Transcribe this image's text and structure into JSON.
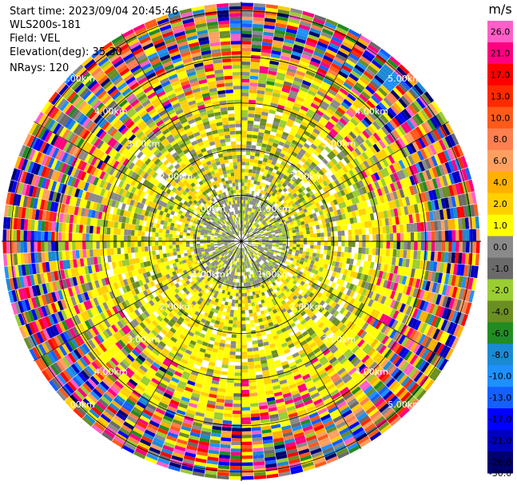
{
  "header": {
    "start_time": "Start time: 2023/09/04 20:45:46",
    "instrument": "WLS200s-181",
    "field": "Field: VEL",
    "elevation": "Elevation(deg): 35.30",
    "nrays": "NRays: 120"
  },
  "chart_data": {
    "type": "heatmap",
    "subtype": "polar PPI",
    "field": "VEL",
    "units": "m/s",
    "nrays": 120,
    "elevation_deg": 35.3,
    "range_rings_km": [
      "1.00km",
      "2.00km",
      "3.00km",
      "4.00km",
      "5.00km"
    ],
    "ring_label_angles_deg": [
      45,
      135,
      225,
      315
    ],
    "max_range_km": 5.2,
    "colorbar": {
      "label": "m/s",
      "ticks": [
        "26.0",
        "21.0",
        "17.0",
        "13.0",
        "10.0",
        "8.0",
        "6.0",
        "4.0",
        "2.0",
        "1.0",
        "0.0",
        "-1.0",
        "-2.0",
        "-4.0",
        "-6.0",
        "-8.0",
        "-10.0",
        "-13.0",
        "-17.0",
        "-21.0",
        "-26.0",
        "-30.0"
      ],
      "colors": [
        "#ff5ec8",
        "#ff0080",
        "#ff0000",
        "#ff2a00",
        "#ff5a1a",
        "#ff7f50",
        "#ffa060",
        "#ffb000",
        "#ffd000",
        "#ffff00",
        "#8a8a8a",
        "#6a6a6a",
        "#9acd32",
        "#6b8e23",
        "#228b22",
        "#1a8ad4",
        "#1e90ff",
        "#1460ff",
        "#0000ff",
        "#0000c0",
        "#00006e"
      ]
    },
    "regions": [
      {
        "range_km": [
          0.0,
          3.0
        ],
        "dominant": [
          "#8a8a8a",
          "#9acd32",
          "#ffff00",
          "#ffd000",
          "#6b8e23"
        ]
      },
      {
        "range_km": [
          3.0,
          4.0
        ],
        "dominant": [
          "#8a8a8a",
          "#ffff00",
          "#9acd32",
          "#ffd000",
          "#ff0080"
        ]
      },
      {
        "range_km": [
          4.0,
          5.2
        ],
        "dominant": "all (noise)"
      }
    ]
  }
}
